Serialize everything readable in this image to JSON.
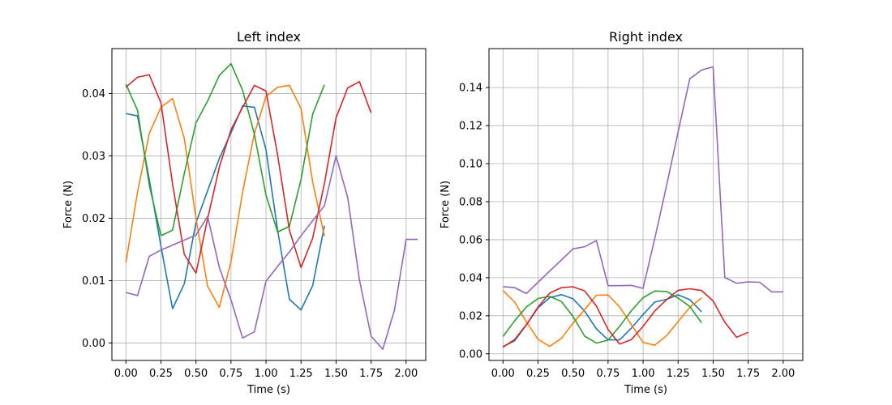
{
  "chart_data": [
    {
      "type": "line",
      "title": "Left index",
      "xlabel": "Time (s)",
      "ylabel": "Force (N)",
      "xlim": [
        -0.1,
        2.14
      ],
      "ylim": [
        -0.0028,
        0.0472
      ],
      "xticks": [
        0.0,
        0.25,
        0.5,
        0.75,
        1.0,
        1.25,
        1.5,
        1.75,
        2.0
      ],
      "xtick_labels": [
        "0.00",
        "0.25",
        "0.50",
        "0.75",
        "1.00",
        "1.25",
        "1.50",
        "1.75",
        "2.00"
      ],
      "yticks": [
        0.0,
        0.01,
        0.02,
        0.03,
        0.04
      ],
      "ytick_labels": [
        "0.00",
        "0.01",
        "0.02",
        "0.03",
        "0.04"
      ],
      "grid": true,
      "series": [
        {
          "color": "#1f77b4",
          "x": [
            0.0,
            0.083,
            0.167,
            0.25,
            0.333,
            0.417,
            0.5,
            0.583,
            0.667,
            0.75,
            0.833,
            0.917,
            1.0,
            1.083,
            1.167,
            1.25,
            1.333,
            1.417
          ],
          "y": [
            0.0368,
            0.0364,
            0.0262,
            0.0155,
            0.0055,
            0.0095,
            0.0193,
            0.0244,
            0.0296,
            0.0337,
            0.038,
            0.0378,
            0.031,
            0.018,
            0.007,
            0.0053,
            0.0092,
            0.0188
          ]
        },
        {
          "color": "#ff7f0e",
          "x": [
            0.0,
            0.083,
            0.167,
            0.25,
            0.333,
            0.417,
            0.5,
            0.583,
            0.667,
            0.75,
            0.833,
            0.917,
            1.0,
            1.083,
            1.167,
            1.25,
            1.333,
            1.417
          ],
          "y": [
            0.0129,
            0.0242,
            0.0336,
            0.0378,
            0.0392,
            0.0328,
            0.02,
            0.0091,
            0.0057,
            0.0131,
            0.0242,
            0.0336,
            0.0395,
            0.041,
            0.0413,
            0.0376,
            0.0258,
            0.0171
          ]
        },
        {
          "color": "#2ca02c",
          "x": [
            0.0,
            0.083,
            0.167,
            0.25,
            0.333,
            0.417,
            0.5,
            0.583,
            0.667,
            0.75,
            0.833,
            0.917,
            1.0,
            1.083,
            1.167,
            1.25,
            1.333,
            1.417
          ],
          "y": [
            0.0415,
            0.0373,
            0.0253,
            0.0172,
            0.0181,
            0.0272,
            0.0353,
            0.0388,
            0.0429,
            0.0448,
            0.0405,
            0.0335,
            0.0237,
            0.0178,
            0.0187,
            0.0262,
            0.0367,
            0.0414
          ]
        },
        {
          "color": "#d62728",
          "x": [
            0.0,
            0.083,
            0.167,
            0.25,
            0.333,
            0.417,
            0.5,
            0.583,
            0.667,
            0.75,
            0.833,
            0.917,
            1.0,
            1.083,
            1.167,
            1.25,
            1.333,
            1.417,
            1.5,
            1.583,
            1.667,
            1.75
          ],
          "y": [
            0.041,
            0.0426,
            0.043,
            0.0385,
            0.0255,
            0.0142,
            0.0112,
            0.0199,
            0.0282,
            0.0342,
            0.0378,
            0.0413,
            0.0404,
            0.0301,
            0.0181,
            0.0121,
            0.0168,
            0.0256,
            0.0361,
            0.0409,
            0.0419,
            0.0369
          ]
        },
        {
          "color": "#9467bd",
          "x": [
            0.0,
            0.083,
            0.167,
            0.25,
            0.333,
            0.417,
            0.5,
            0.583,
            0.667,
            0.75,
            0.833,
            0.917,
            1.0,
            1.083,
            1.167,
            1.25,
            1.333,
            1.417,
            1.5,
            1.583,
            1.667,
            1.75,
            1.833,
            1.917,
            2.0,
            2.083
          ],
          "y": [
            0.0081,
            0.0076,
            0.0139,
            0.0149,
            0.0157,
            0.0165,
            0.0173,
            0.0203,
            0.0121,
            0.0069,
            0.0008,
            0.0018,
            0.0099,
            0.0123,
            0.0146,
            0.0172,
            0.0196,
            0.022,
            0.03,
            0.0233,
            0.0101,
            0.0011,
            -0.001,
            0.0053,
            0.0166,
            0.0166
          ]
        }
      ]
    },
    {
      "type": "line",
      "title": "Right index",
      "xlabel": "Time (s)",
      "ylabel": "Force (N)",
      "xlim": [
        -0.1,
        2.14
      ],
      "ylim": [
        -0.0035,
        0.1605
      ],
      "xticks": [
        0.0,
        0.25,
        0.5,
        0.75,
        1.0,
        1.25,
        1.5,
        1.75,
        2.0
      ],
      "xtick_labels": [
        "0.00",
        "0.25",
        "0.50",
        "0.75",
        "1.00",
        "1.25",
        "1.50",
        "1.75",
        "2.00"
      ],
      "yticks": [
        0.0,
        0.02,
        0.04,
        0.06,
        0.08,
        0.1,
        0.12,
        0.14
      ],
      "ytick_labels": [
        "0.00",
        "0.02",
        "0.04",
        "0.06",
        "0.08",
        "0.10",
        "0.12",
        "0.14"
      ],
      "grid": true,
      "series": [
        {
          "color": "#1f77b4",
          "x": [
            0.0,
            0.083,
            0.167,
            0.25,
            0.333,
            0.417,
            0.5,
            0.583,
            0.667,
            0.75,
            0.833,
            0.917,
            1.0,
            1.083,
            1.167,
            1.25,
            1.333,
            1.417
          ],
          "y": [
            0.0038,
            0.0068,
            0.0151,
            0.0242,
            0.0295,
            0.0311,
            0.0289,
            0.0224,
            0.0131,
            0.0073,
            0.0073,
            0.0136,
            0.0206,
            0.0272,
            0.0286,
            0.031,
            0.0285,
            0.0221
          ]
        },
        {
          "color": "#ff7f0e",
          "x": [
            0.0,
            0.083,
            0.167,
            0.25,
            0.333,
            0.417,
            0.5,
            0.583,
            0.667,
            0.75,
            0.833,
            0.917,
            1.0,
            1.083,
            1.167,
            1.25,
            1.333,
            1.417
          ],
          "y": [
            0.0333,
            0.0272,
            0.0168,
            0.0076,
            0.0039,
            0.0081,
            0.0162,
            0.0232,
            0.0308,
            0.0309,
            0.0246,
            0.0152,
            0.006,
            0.0045,
            0.0095,
            0.0169,
            0.0244,
            0.0294
          ]
        },
        {
          "color": "#2ca02c",
          "x": [
            0.0,
            0.083,
            0.167,
            0.25,
            0.333,
            0.417,
            0.5,
            0.583,
            0.667,
            0.75,
            0.833,
            0.917,
            1.0,
            1.083,
            1.167,
            1.25,
            1.333,
            1.417
          ],
          "y": [
            0.0091,
            0.0173,
            0.0246,
            0.0291,
            0.0302,
            0.0275,
            0.0196,
            0.0093,
            0.0056,
            0.0072,
            0.0145,
            0.0227,
            0.0295,
            0.033,
            0.0328,
            0.0293,
            0.0249,
            0.0163
          ]
        },
        {
          "color": "#d62728",
          "x": [
            0.0,
            0.083,
            0.167,
            0.25,
            0.333,
            0.417,
            0.5,
            0.583,
            0.667,
            0.75,
            0.833,
            0.917,
            1.0,
            1.083,
            1.167,
            1.25,
            1.333,
            1.417,
            1.5,
            1.583,
            1.667,
            1.75
          ],
          "y": [
            0.0035,
            0.0075,
            0.0153,
            0.0246,
            0.0319,
            0.0348,
            0.0352,
            0.0331,
            0.0251,
            0.0128,
            0.0051,
            0.0075,
            0.0144,
            0.0225,
            0.0284,
            0.0334,
            0.0342,
            0.0333,
            0.0278,
            0.0166,
            0.0087,
            0.0113
          ]
        },
        {
          "color": "#9467bd",
          "x": [
            0.0,
            0.083,
            0.167,
            0.25,
            0.333,
            0.417,
            0.5,
            0.583,
            0.667,
            0.75,
            0.833,
            0.917,
            1.0,
            1.083,
            1.167,
            1.25,
            1.333,
            1.417,
            1.5,
            1.583,
            1.667,
            1.75,
            1.833,
            1.917,
            2.0
          ],
          "y": [
            0.0353,
            0.0348,
            0.0317,
            0.0376,
            0.0435,
            0.0493,
            0.0552,
            0.0563,
            0.0595,
            0.0358,
            0.0358,
            0.036,
            0.0344,
            0.0605,
            0.0883,
            0.1166,
            0.1446,
            0.1492,
            0.1509,
            0.0401,
            0.0371,
            0.0378,
            0.0376,
            0.0326,
            0.0326
          ]
        }
      ]
    }
  ]
}
